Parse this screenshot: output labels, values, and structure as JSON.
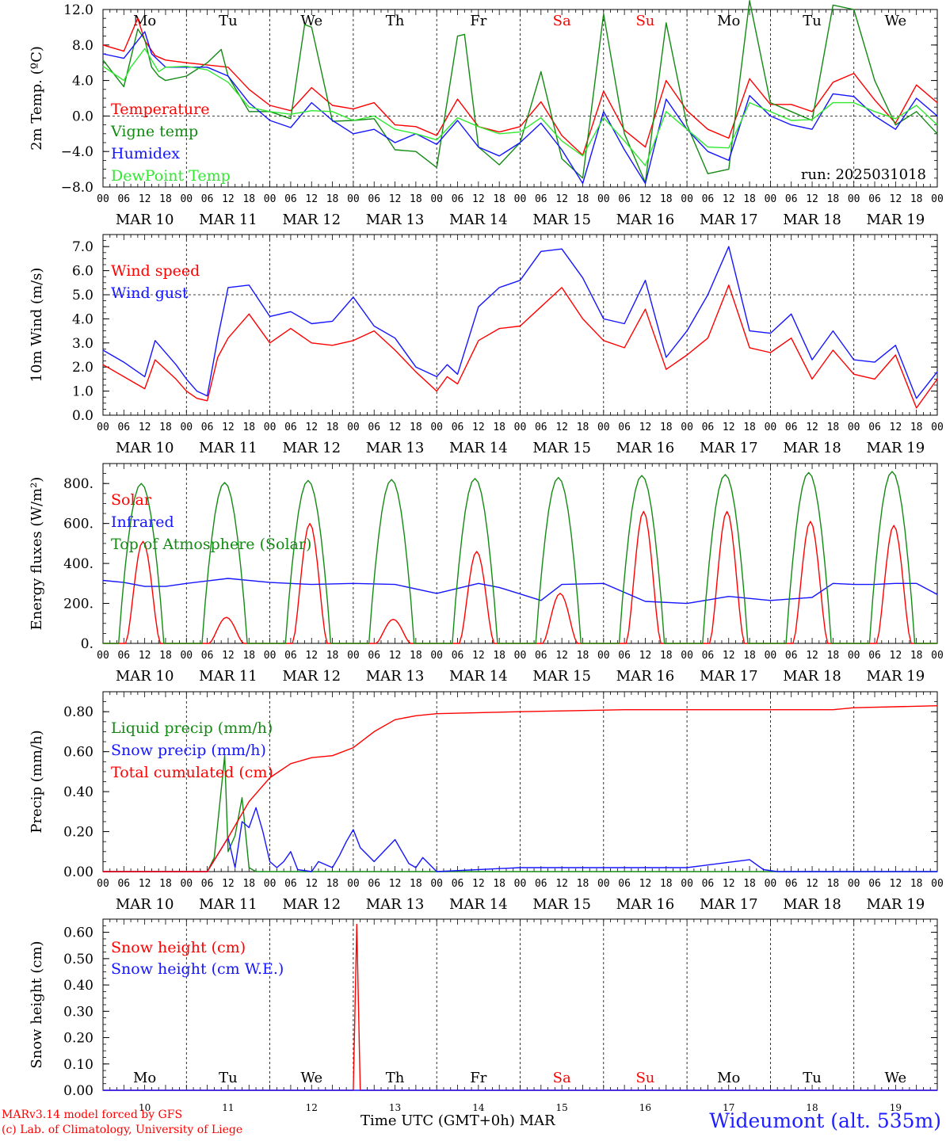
{
  "days": [
    {
      "abbr": "Mo",
      "date": "MAR 10",
      "num": "10",
      "weekend": false
    },
    {
      "abbr": "Tu",
      "date": "MAR 11",
      "num": "11",
      "weekend": false
    },
    {
      "abbr": "We",
      "date": "MAR 12",
      "num": "12",
      "weekend": false
    },
    {
      "abbr": "Th",
      "date": "MAR 13",
      "num": "13",
      "weekend": false
    },
    {
      "abbr": "Fr",
      "date": "MAR 14",
      "num": "14",
      "weekend": false
    },
    {
      "abbr": "Sa",
      "date": "MAR 15",
      "num": "15",
      "weekend": true
    },
    {
      "abbr": "Su",
      "date": "MAR 16",
      "num": "16",
      "weekend": true
    },
    {
      "abbr": "Mo",
      "date": "MAR 17",
      "num": "17",
      "weekend": false
    },
    {
      "abbr": "Tu",
      "date": "MAR 18",
      "num": "18",
      "weekend": false
    },
    {
      "abbr": "We",
      "date": "MAR 19",
      "num": "19",
      "weekend": false
    }
  ],
  "hour_labels": [
    "00",
    "06",
    "12",
    "18"
  ],
  "colors": {
    "red": "#ff0000",
    "green": "#138a13",
    "blue": "#1515ff",
    "lightgreen": "#30e830",
    "axis": "#000000",
    "weekend": "#ff0000"
  },
  "footer": {
    "model_line1": "MARv3.14 model forced by GFS",
    "model_line2": "(c) Lab. of Climatology, University of Liege",
    "time_label": "Time UTC (GMT+0h) MAR",
    "station": "Wideumont (alt. 535m)"
  },
  "chart_data": [
    {
      "type": "line",
      "ylabel": "2m Temp. (ºC)",
      "ylim": [
        -8,
        12
      ],
      "yticks": [
        "12.0",
        "8.0",
        "4.0",
        "0.0",
        "−4.0",
        "−8.0"
      ],
      "ytick_values": [
        12,
        8,
        4,
        0,
        -4,
        -8
      ],
      "reference_line": 0,
      "annotation": "run: 2025031018",
      "x_unit": "hours since MAR 10 00 UTC",
      "series": [
        {
          "name": "Temperature",
          "color": "red",
          "x": [
            0,
            6,
            10,
            12,
            15,
            18,
            24,
            36,
            42,
            48,
            54,
            60,
            66,
            72,
            78,
            84,
            90,
            96,
            102,
            108,
            114,
            120,
            126,
            132,
            138,
            144,
            150,
            156,
            162,
            168,
            174,
            180,
            186,
            192,
            198,
            204,
            210,
            216,
            222,
            228,
            234,
            240
          ],
          "y": [
            8,
            7.3,
            11,
            8.5,
            6.8,
            6.3,
            6,
            5.5,
            3,
            1.2,
            0.6,
            3.2,
            1.2,
            0.8,
            1.5,
            -1,
            -1.2,
            -2.2,
            1.9,
            -1.2,
            -1.8,
            -1.2,
            1.6,
            -2.2,
            -4.4,
            2.8,
            -1.6,
            -3.5,
            4,
            0.6,
            -1.5,
            -2.5,
            4.2,
            1.3,
            1.3,
            0.5,
            3.8,
            4.8,
            1.8,
            -0.8,
            3.5,
            1.5
          ]
        },
        {
          "name": "Vigne temp",
          "color": "green",
          "x": [
            0,
            6,
            8,
            10,
            12,
            14,
            16,
            18,
            24,
            30,
            34,
            36,
            42,
            48,
            54,
            58,
            60,
            66,
            72,
            78,
            84,
            90,
            96,
            102,
            104,
            108,
            114,
            120,
            126,
            132,
            138,
            144,
            150,
            156,
            162,
            168,
            174,
            180,
            186,
            192,
            198,
            204,
            210,
            216,
            222,
            228,
            234,
            240
          ],
          "y": [
            6.3,
            3.3,
            6.5,
            9.8,
            8.6,
            5.5,
            4.5,
            4,
            4.5,
            6,
            7.5,
            4.5,
            0.5,
            0.5,
            -0.3,
            10.3,
            10,
            -0.6,
            -0.5,
            -0.3,
            -3.8,
            -4,
            -5.8,
            9,
            9.2,
            -3.5,
            -5.5,
            -3,
            5,
            -4.8,
            -7,
            11.5,
            -2,
            -7.5,
            10.5,
            -1,
            -6.5,
            -6,
            13,
            1.5,
            0.5,
            -0.5,
            12.5,
            12,
            4,
            -1,
            0.5,
            -2
          ]
        },
        {
          "name": "Humidex",
          "color": "blue",
          "x": [
            0,
            6,
            8,
            12,
            14,
            18,
            24,
            30,
            36,
            42,
            48,
            54,
            60,
            66,
            72,
            78,
            84,
            90,
            96,
            102,
            108,
            114,
            120,
            126,
            132,
            138,
            144,
            150,
            156,
            162,
            168,
            174,
            180,
            186,
            192,
            198,
            204,
            210,
            216,
            222,
            228,
            234,
            240
          ],
          "y": [
            7,
            6.5,
            7.5,
            9.5,
            7,
            5.5,
            5.5,
            5.5,
            4.5,
            1.5,
            -0.5,
            -1.3,
            1.5,
            -0.5,
            -2,
            -1.5,
            -3,
            -2,
            -3.2,
            -0.5,
            -3.5,
            -4.5,
            -3,
            -0.8,
            -3.8,
            -7.6,
            0.5,
            -3.8,
            -7.6,
            1.9,
            -1.5,
            -4,
            -5,
            2.3,
            0,
            -1,
            -1.5,
            2.5,
            2.2,
            0,
            -1.5,
            2,
            0
          ]
        },
        {
          "name": "DewPoint Temp",
          "color": "lightgreen",
          "x": [
            0,
            6,
            8,
            12,
            16,
            18,
            24,
            30,
            36,
            42,
            48,
            54,
            60,
            66,
            72,
            78,
            84,
            90,
            96,
            102,
            108,
            114,
            120,
            126,
            132,
            138,
            144,
            150,
            156,
            162,
            168,
            174,
            180,
            186,
            192,
            198,
            204,
            210,
            216,
            222,
            228,
            234,
            240
          ],
          "y": [
            5.6,
            4,
            5.5,
            7.6,
            5,
            5.5,
            5.6,
            5.2,
            3.8,
            1,
            0.5,
            0.2,
            0.6,
            0.5,
            -0.5,
            0,
            -1.5,
            -2,
            -2.7,
            -0.2,
            -1.2,
            -2,
            -1.8,
            -0.2,
            -2.8,
            -4.5,
            -0.2,
            -2.8,
            -5.6,
            0.5,
            -1.5,
            -3.5,
            -3.6,
            1.5,
            0.5,
            -0.5,
            -0.4,
            1.5,
            1.5,
            0.5,
            -0.3,
            1.2,
            -1
          ]
        }
      ]
    },
    {
      "type": "line",
      "ylabel": "10m Wind (m/s)",
      "ylim": [
        0,
        7.5
      ],
      "yticks": [
        "7.0",
        "6.0",
        "5.0",
        "4.0",
        "3.0",
        "2.0",
        "1.0",
        "0.0"
      ],
      "ytick_values": [
        7,
        6,
        5,
        4,
        3,
        2,
        1,
        0
      ],
      "reference_line": 5,
      "x_unit": "hours since MAR 10 00 UTC",
      "series": [
        {
          "name": "Wind speed",
          "color": "red",
          "x": [
            0,
            6,
            12,
            15,
            21,
            24,
            27,
            30,
            33,
            36,
            42,
            48,
            54,
            60,
            66,
            72,
            78,
            84,
            90,
            96,
            99,
            102,
            108,
            114,
            120,
            126,
            132,
            138,
            144,
            150,
            156,
            162,
            168,
            174,
            180,
            186,
            192,
            198,
            204,
            210,
            216,
            222,
            228,
            234,
            240
          ],
          "y": [
            2.1,
            1.6,
            1.1,
            2.3,
            1.5,
            1,
            0.7,
            0.6,
            2.4,
            3.2,
            4.2,
            3,
            3.6,
            3,
            2.9,
            3.1,
            3.5,
            2.7,
            1.8,
            1,
            1.6,
            1.3,
            3.1,
            3.6,
            3.7,
            4.5,
            5.3,
            4,
            3.1,
            2.8,
            4.4,
            1.9,
            2.5,
            3.2,
            5.4,
            2.8,
            2.6,
            3.2,
            1.5,
            2.7,
            1.7,
            1.5,
            2.5,
            0.3,
            1.5
          ]
        },
        {
          "name": "Wind gust",
          "color": "blue",
          "x": [
            0,
            6,
            12,
            15,
            21,
            24,
            27,
            30,
            33,
            36,
            42,
            48,
            54,
            60,
            66,
            72,
            78,
            84,
            90,
            96,
            99,
            102,
            108,
            114,
            120,
            126,
            132,
            138,
            144,
            150,
            156,
            162,
            168,
            174,
            180,
            186,
            192,
            198,
            204,
            210,
            216,
            222,
            228,
            234,
            240
          ],
          "y": [
            2.7,
            2.2,
            1.6,
            3.1,
            2.1,
            1.5,
            1,
            0.8,
            3.2,
            5.3,
            5.4,
            4.1,
            4.3,
            3.8,
            3.9,
            4.9,
            3.7,
            3.2,
            2,
            1.6,
            2.1,
            1.7,
            4.5,
            5.3,
            5.6,
            6.8,
            6.9,
            5.7,
            4,
            3.8,
            5.6,
            2.4,
            3.5,
            5,
            7,
            3.5,
            3.4,
            4.2,
            2.3,
            3.5,
            2.3,
            2.2,
            2.9,
            0.7,
            1.8
          ]
        }
      ]
    },
    {
      "type": "line",
      "ylabel": "Energy fluxes (W/m²)",
      "ylim": [
        0,
        900
      ],
      "yticks": [
        "800.",
        "600.",
        "400.",
        "200.",
        "0."
      ],
      "ytick_values": [
        800,
        600,
        400,
        200,
        0
      ],
      "x_unit": "hours since MAR 10 00 UTC",
      "series": [
        {
          "name": "Solar",
          "color": "red",
          "peaks": [
            510,
            130,
            600,
            120,
            460,
            250,
            660,
            660,
            610,
            590
          ]
        },
        {
          "name": "Infrared",
          "color": "blue",
          "x": [
            0,
            6,
            12,
            18,
            24,
            36,
            48,
            60,
            72,
            84,
            96,
            108,
            114,
            126,
            132,
            144,
            156,
            168,
            180,
            192,
            204,
            210,
            216,
            222,
            228,
            234,
            240
          ],
          "y": [
            315,
            305,
            285,
            285,
            300,
            325,
            305,
            295,
            300,
            295,
            250,
            300,
            280,
            215,
            295,
            300,
            210,
            200,
            235,
            215,
            230,
            300,
            295,
            295,
            300,
            300,
            245
          ]
        },
        {
          "name": "Top of Atmosphere (Solar)",
          "color": "green",
          "peaks": [
            800,
            805,
            815,
            820,
            825,
            830,
            840,
            845,
            855,
            860
          ]
        }
      ]
    },
    {
      "type": "line",
      "ylabel": "Precip (mm/h)",
      "ylim": [
        0,
        0.9
      ],
      "yticks": [
        "0.80",
        "0.60",
        "0.40",
        "0.20",
        "0.00"
      ],
      "ytick_values": [
        0.8,
        0.6,
        0.4,
        0.2,
        0
      ],
      "x_unit": "hours since MAR 10 00 UTC",
      "series": [
        {
          "name": "Liquid precip (mm/h)",
          "color": "green",
          "x": [
            0,
            30,
            32,
            35,
            36,
            38,
            40,
            42,
            44,
            46,
            48,
            240
          ],
          "y": [
            0,
            0,
            0.07,
            0.58,
            0.1,
            0.18,
            0.37,
            0.02,
            0,
            0,
            0,
            0
          ]
        },
        {
          "name": "Snow precip (mm/h)",
          "color": "blue",
          "x": [
            0,
            30,
            36,
            38,
            40,
            42,
            44,
            46,
            48,
            50,
            52,
            54,
            56,
            60,
            62,
            66,
            68,
            70,
            72,
            74,
            78,
            84,
            88,
            90,
            92,
            96,
            120,
            138,
            168,
            186,
            190,
            194,
            240
          ],
          "y": [
            0,
            0,
            0.17,
            0.02,
            0.25,
            0.22,
            0.32,
            0.2,
            0.05,
            0.02,
            0.05,
            0.1,
            0.01,
            0,
            0.05,
            0.02,
            0.08,
            0.15,
            0.21,
            0.12,
            0.05,
            0.16,
            0.04,
            0.02,
            0.07,
            0,
            0.02,
            0.02,
            0.02,
            0.06,
            0.01,
            0,
            0
          ]
        },
        {
          "name": "Total cumulated (cm)",
          "color": "red",
          "x": [
            0,
            30,
            36,
            42,
            48,
            54,
            60,
            66,
            72,
            78,
            84,
            90,
            96,
            120,
            150,
            174,
            210,
            216,
            240
          ],
          "y": [
            0,
            0,
            0.17,
            0.35,
            0.47,
            0.54,
            0.57,
            0.58,
            0.62,
            0.7,
            0.76,
            0.78,
            0.79,
            0.8,
            0.81,
            0.81,
            0.81,
            0.82,
            0.83
          ]
        }
      ]
    },
    {
      "type": "line",
      "ylabel": "Snow height (cm)",
      "ylim": [
        0,
        0.65
      ],
      "yticks": [
        "0.60",
        "0.50",
        "0.40",
        "0.30",
        "0.20",
        "0.10",
        "0.00"
      ],
      "ytick_values": [
        0.6,
        0.5,
        0.4,
        0.3,
        0.2,
        0.1,
        0
      ],
      "x_unit": "hours since MAR 10 00 UTC",
      "series": [
        {
          "name": "Snow height (cm)",
          "color": "red",
          "x": [
            0,
            72,
            73,
            74,
            240
          ],
          "y": [
            0,
            0,
            0.63,
            0,
            0
          ]
        },
        {
          "name": "Snow height (cm W.E.)",
          "color": "blue",
          "x": [
            0,
            240
          ],
          "y": [
            0,
            0
          ]
        }
      ]
    }
  ]
}
